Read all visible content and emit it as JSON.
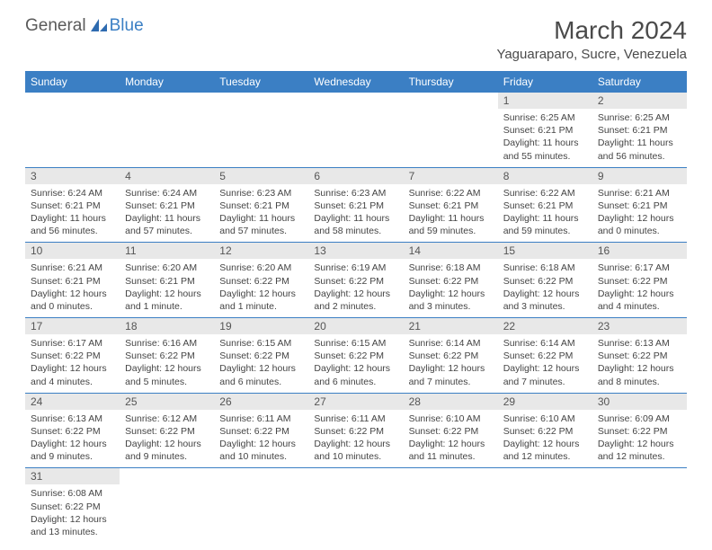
{
  "logo": {
    "text1": "General",
    "text2": "Blue"
  },
  "title": "March 2024",
  "location": "Yaguaraparo, Sucre, Venezuela",
  "colors": {
    "header_bg": "#3b7fc4",
    "header_fg": "#ffffff",
    "daynum_bg": "#e8e8e8",
    "text": "#444444",
    "border": "#3b7fc4"
  },
  "weekdays": [
    "Sunday",
    "Monday",
    "Tuesday",
    "Wednesday",
    "Thursday",
    "Friday",
    "Saturday"
  ],
  "weeks": [
    [
      null,
      null,
      null,
      null,
      null,
      {
        "n": "1",
        "sr": "Sunrise: 6:25 AM",
        "ss": "Sunset: 6:21 PM",
        "dl": "Daylight: 11 hours and 55 minutes."
      },
      {
        "n": "2",
        "sr": "Sunrise: 6:25 AM",
        "ss": "Sunset: 6:21 PM",
        "dl": "Daylight: 11 hours and 56 minutes."
      }
    ],
    [
      {
        "n": "3",
        "sr": "Sunrise: 6:24 AM",
        "ss": "Sunset: 6:21 PM",
        "dl": "Daylight: 11 hours and 56 minutes."
      },
      {
        "n": "4",
        "sr": "Sunrise: 6:24 AM",
        "ss": "Sunset: 6:21 PM",
        "dl": "Daylight: 11 hours and 57 minutes."
      },
      {
        "n": "5",
        "sr": "Sunrise: 6:23 AM",
        "ss": "Sunset: 6:21 PM",
        "dl": "Daylight: 11 hours and 57 minutes."
      },
      {
        "n": "6",
        "sr": "Sunrise: 6:23 AM",
        "ss": "Sunset: 6:21 PM",
        "dl": "Daylight: 11 hours and 58 minutes."
      },
      {
        "n": "7",
        "sr": "Sunrise: 6:22 AM",
        "ss": "Sunset: 6:21 PM",
        "dl": "Daylight: 11 hours and 59 minutes."
      },
      {
        "n": "8",
        "sr": "Sunrise: 6:22 AM",
        "ss": "Sunset: 6:21 PM",
        "dl": "Daylight: 11 hours and 59 minutes."
      },
      {
        "n": "9",
        "sr": "Sunrise: 6:21 AM",
        "ss": "Sunset: 6:21 PM",
        "dl": "Daylight: 12 hours and 0 minutes."
      }
    ],
    [
      {
        "n": "10",
        "sr": "Sunrise: 6:21 AM",
        "ss": "Sunset: 6:21 PM",
        "dl": "Daylight: 12 hours and 0 minutes."
      },
      {
        "n": "11",
        "sr": "Sunrise: 6:20 AM",
        "ss": "Sunset: 6:21 PM",
        "dl": "Daylight: 12 hours and 1 minute."
      },
      {
        "n": "12",
        "sr": "Sunrise: 6:20 AM",
        "ss": "Sunset: 6:22 PM",
        "dl": "Daylight: 12 hours and 1 minute."
      },
      {
        "n": "13",
        "sr": "Sunrise: 6:19 AM",
        "ss": "Sunset: 6:22 PM",
        "dl": "Daylight: 12 hours and 2 minutes."
      },
      {
        "n": "14",
        "sr": "Sunrise: 6:18 AM",
        "ss": "Sunset: 6:22 PM",
        "dl": "Daylight: 12 hours and 3 minutes."
      },
      {
        "n": "15",
        "sr": "Sunrise: 6:18 AM",
        "ss": "Sunset: 6:22 PM",
        "dl": "Daylight: 12 hours and 3 minutes."
      },
      {
        "n": "16",
        "sr": "Sunrise: 6:17 AM",
        "ss": "Sunset: 6:22 PM",
        "dl": "Daylight: 12 hours and 4 minutes."
      }
    ],
    [
      {
        "n": "17",
        "sr": "Sunrise: 6:17 AM",
        "ss": "Sunset: 6:22 PM",
        "dl": "Daylight: 12 hours and 4 minutes."
      },
      {
        "n": "18",
        "sr": "Sunrise: 6:16 AM",
        "ss": "Sunset: 6:22 PM",
        "dl": "Daylight: 12 hours and 5 minutes."
      },
      {
        "n": "19",
        "sr": "Sunrise: 6:15 AM",
        "ss": "Sunset: 6:22 PM",
        "dl": "Daylight: 12 hours and 6 minutes."
      },
      {
        "n": "20",
        "sr": "Sunrise: 6:15 AM",
        "ss": "Sunset: 6:22 PM",
        "dl": "Daylight: 12 hours and 6 minutes."
      },
      {
        "n": "21",
        "sr": "Sunrise: 6:14 AM",
        "ss": "Sunset: 6:22 PM",
        "dl": "Daylight: 12 hours and 7 minutes."
      },
      {
        "n": "22",
        "sr": "Sunrise: 6:14 AM",
        "ss": "Sunset: 6:22 PM",
        "dl": "Daylight: 12 hours and 7 minutes."
      },
      {
        "n": "23",
        "sr": "Sunrise: 6:13 AM",
        "ss": "Sunset: 6:22 PM",
        "dl": "Daylight: 12 hours and 8 minutes."
      }
    ],
    [
      {
        "n": "24",
        "sr": "Sunrise: 6:13 AM",
        "ss": "Sunset: 6:22 PM",
        "dl": "Daylight: 12 hours and 9 minutes."
      },
      {
        "n": "25",
        "sr": "Sunrise: 6:12 AM",
        "ss": "Sunset: 6:22 PM",
        "dl": "Daylight: 12 hours and 9 minutes."
      },
      {
        "n": "26",
        "sr": "Sunrise: 6:11 AM",
        "ss": "Sunset: 6:22 PM",
        "dl": "Daylight: 12 hours and 10 minutes."
      },
      {
        "n": "27",
        "sr": "Sunrise: 6:11 AM",
        "ss": "Sunset: 6:22 PM",
        "dl": "Daylight: 12 hours and 10 minutes."
      },
      {
        "n": "28",
        "sr": "Sunrise: 6:10 AM",
        "ss": "Sunset: 6:22 PM",
        "dl": "Daylight: 12 hours and 11 minutes."
      },
      {
        "n": "29",
        "sr": "Sunrise: 6:10 AM",
        "ss": "Sunset: 6:22 PM",
        "dl": "Daylight: 12 hours and 12 minutes."
      },
      {
        "n": "30",
        "sr": "Sunrise: 6:09 AM",
        "ss": "Sunset: 6:22 PM",
        "dl": "Daylight: 12 hours and 12 minutes."
      }
    ],
    [
      {
        "n": "31",
        "sr": "Sunrise: 6:08 AM",
        "ss": "Sunset: 6:22 PM",
        "dl": "Daylight: 12 hours and 13 minutes."
      },
      null,
      null,
      null,
      null,
      null,
      null
    ]
  ]
}
